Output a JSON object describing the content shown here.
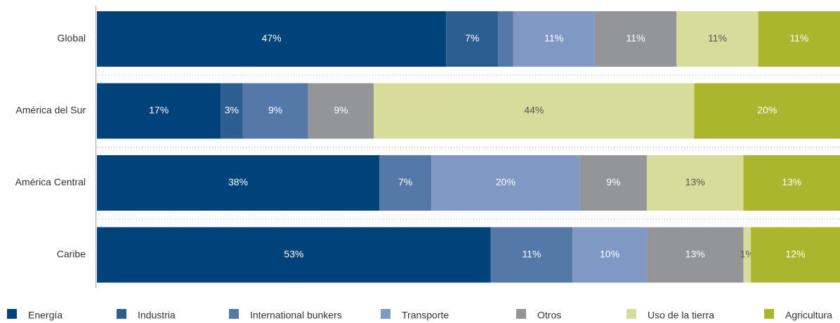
{
  "chart_data": {
    "type": "stacked-bar-horizontal",
    "categories": [
      "Global",
      "América del Sur",
      "América Central",
      "Caribe"
    ],
    "series": [
      {
        "name": "Energía",
        "color": "#00427a",
        "values": [
          47,
          17,
          38,
          53
        ],
        "value_labels": [
          "47%",
          "17%",
          "38%",
          "53%"
        ]
      },
      {
        "name": "Industria",
        "color": "#2d5e91",
        "values": [
          7,
          3,
          null,
          null
        ],
        "value_labels": [
          "7%",
          "3%",
          null,
          null
        ]
      },
      {
        "name": "International bunkers",
        "color": "#5478a8",
        "values": [
          2,
          9,
          7,
          11
        ],
        "value_labels": [
          null,
          "9%",
          "7%",
          "11%"
        ]
      },
      {
        "name": "Transporte",
        "color": "#8099c4",
        "values": [
          11,
          null,
          20,
          10
        ],
        "value_labels": [
          "11%",
          null,
          "20%",
          "10%"
        ]
      },
      {
        "name": "Otros",
        "color": "#939598",
        "values": [
          11,
          9,
          9,
          13
        ],
        "value_labels": [
          "11%",
          "9%",
          "9%",
          "13%"
        ]
      },
      {
        "name": "Uso de la tierra",
        "color": "#d8dc9a",
        "values": [
          11,
          44,
          13,
          1
        ],
        "value_labels": [
          "11%",
          "44%",
          "13%",
          "1%"
        ]
      },
      {
        "name": "Agricultura",
        "color": "#aab72e",
        "values": [
          11,
          20,
          13,
          12
        ],
        "value_labels": [
          "11%",
          "20%",
          "13%",
          "12%"
        ]
      }
    ]
  }
}
